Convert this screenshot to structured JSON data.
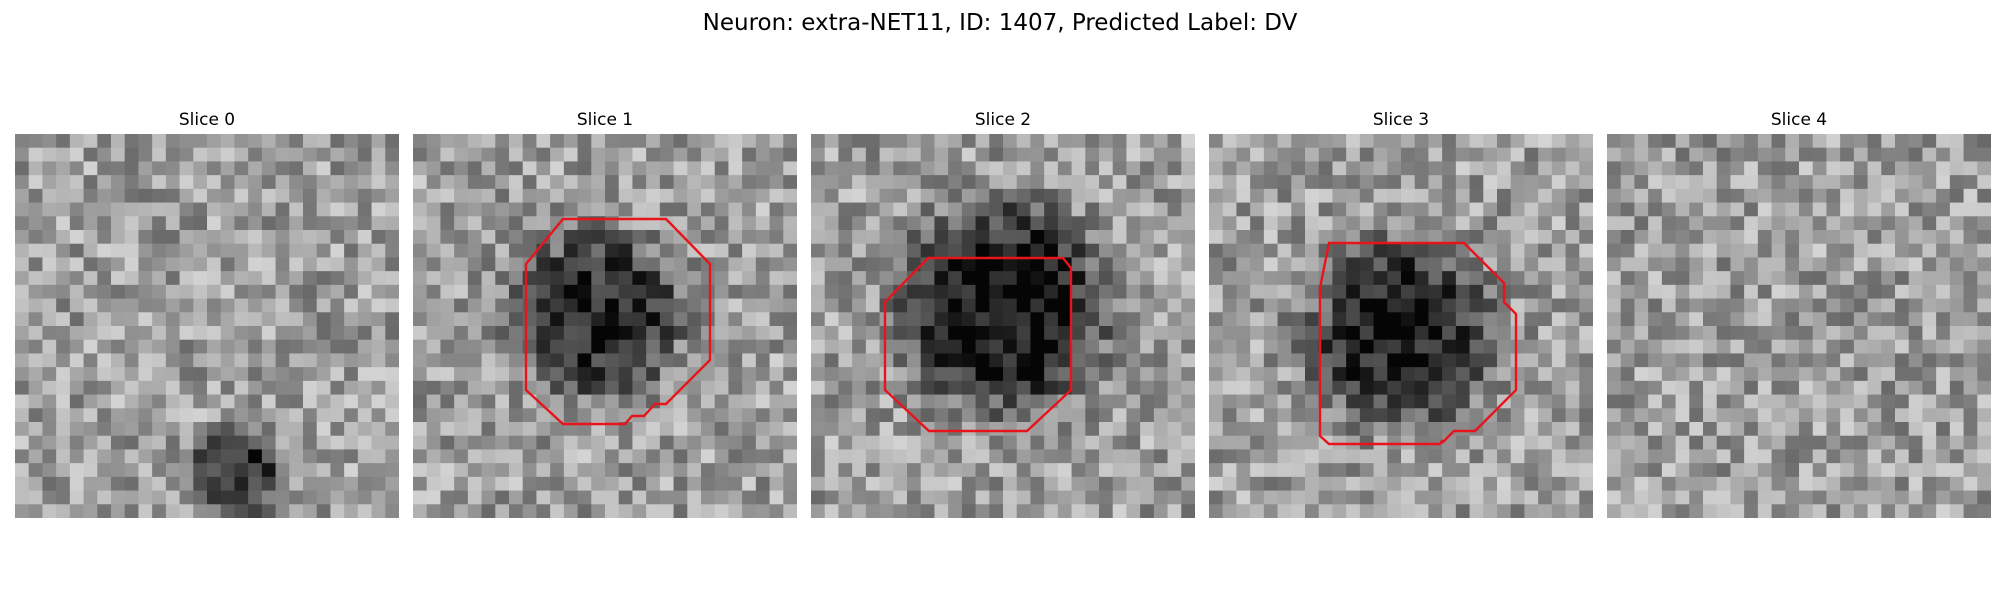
{
  "figure": {
    "title": "Neuron: extra-NET11, ID: 1407, Predicted Label: DV"
  },
  "panels": [
    {
      "title": "Slice 0",
      "blob": null,
      "contour": false,
      "spot": [
        0.58,
        0.88,
        0.12,
        -0.45
      ],
      "seed": 11
    },
    {
      "title": "Slice 1",
      "blob": [
        0.48,
        0.47,
        0.22,
        -0.47
      ],
      "contour": true,
      "seed": 23
    },
    {
      "title": "Slice 2",
      "blob": [
        0.5,
        0.45,
        0.27,
        -0.58
      ],
      "contour": true,
      "seed": 37
    },
    {
      "title": "Slice 3",
      "blob": [
        0.5,
        0.52,
        0.24,
        -0.52
      ],
      "contour": true,
      "seed": 51
    },
    {
      "title": "Slice 4",
      "blob": null,
      "contour": false,
      "seed": 67
    }
  ],
  "contour_color": "#e8141c"
}
